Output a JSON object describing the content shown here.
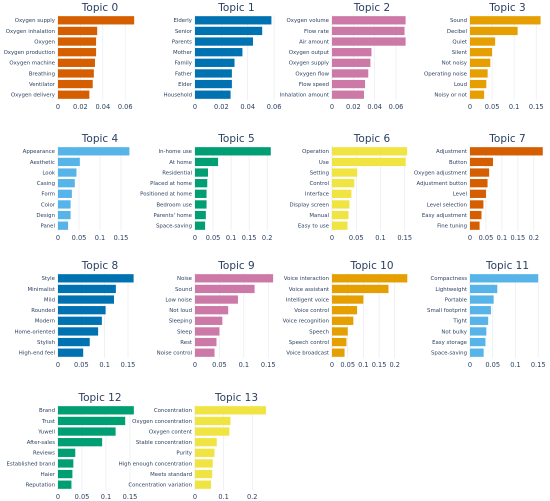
{
  "chart_data": [
    {
      "type": "bar",
      "orientation": "horizontal",
      "title": "Topic 0",
      "color": "#D55E00",
      "xlim": [
        0,
        0.075
      ],
      "xticks": [
        0,
        0.02,
        0.04,
        0.06
      ],
      "xtick_labels": [
        "0",
        "0.02",
        "0.04",
        "0.06"
      ],
      "categories": [
        "Oxygen supply",
        "Oxygen inhalation",
        "Oxygen",
        "Oxygen production",
        "Oxygen machine",
        "Breathing",
        "Ventilator",
        "Oxygen delivery"
      ],
      "values": [
        0.068,
        0.035,
        0.034,
        0.034,
        0.033,
        0.032,
        0.031,
        0.028
      ]
    },
    {
      "type": "bar",
      "orientation": "horizontal",
      "title": "Topic 1",
      "color": "#0072B2",
      "xlim": [
        0,
        0.063
      ],
      "xticks": [
        0,
        0.02,
        0.04,
        0.06
      ],
      "xtick_labels": [
        "0",
        "0.02",
        "0.04",
        "0.06"
      ],
      "categories": [
        "Elderly",
        "Senior",
        "Parents",
        "Mother",
        "Family",
        "Father",
        "Elder",
        "Household"
      ],
      "values": [
        0.058,
        0.051,
        0.044,
        0.036,
        0.03,
        0.028,
        0.028,
        0.027
      ]
    },
    {
      "type": "bar",
      "orientation": "horizontal",
      "title": "Topic 2",
      "color": "#CC79A7",
      "xlim": [
        0,
        0.075
      ],
      "xticks": [
        0,
        0.02,
        0.04,
        0.06
      ],
      "xtick_labels": [
        "0",
        "0.02",
        "0.04",
        "0.06"
      ],
      "categories": [
        "Oxygen volume",
        "Flow rate",
        "Air amount",
        "Oxygen output",
        "Oxygen supply",
        "Oxygen flow",
        "Flow speed",
        "Inhalation amount"
      ],
      "values": [
        0.069,
        0.068,
        0.069,
        0.037,
        0.036,
        0.034,
        0.031,
        0.03
      ]
    },
    {
      "type": "bar",
      "orientation": "horizontal",
      "title": "Topic 3",
      "color": "#E69F00",
      "xlim": [
        0,
        0.17
      ],
      "xticks": [
        0,
        0.05,
        0.1,
        0.15
      ],
      "xtick_labels": [
        "0",
        "0.05",
        "0.1",
        "0.15"
      ],
      "categories": [
        "Sound",
        "Decibel",
        "Quiet",
        "Silent",
        "Not noisy",
        "Operating noise",
        "Loud",
        "Noisy or not"
      ],
      "values": [
        0.16,
        0.108,
        0.057,
        0.05,
        0.046,
        0.04,
        0.037,
        0.032
      ]
    },
    {
      "type": "bar",
      "orientation": "horizontal",
      "title": "Topic 4",
      "color": "#56B4E9",
      "xlim": [
        0,
        0.2
      ],
      "xticks": [
        0,
        0.05,
        0.1,
        0.15
      ],
      "xtick_labels": [
        "0",
        "0.05",
        "0.1",
        "0.15"
      ],
      "categories": [
        "Appearance",
        "Aesthetic",
        "Look",
        "Casing",
        "Form",
        "Color",
        "Design",
        "Panel"
      ],
      "values": [
        0.17,
        0.052,
        0.044,
        0.04,
        0.033,
        0.03,
        0.03,
        0.024
      ]
    },
    {
      "type": "bar",
      "orientation": "horizontal",
      "title": "Topic 5",
      "color": "#009E73",
      "xlim": [
        0,
        0.23
      ],
      "xticks": [
        0,
        0.05,
        0.1,
        0.15,
        0.2
      ],
      "xtick_labels": [
        "0",
        "0.05",
        "0.1",
        "0.15",
        "0.2"
      ],
      "categories": [
        "In-home use",
        "At home",
        "Residential",
        "Placed at home",
        "Positioned at home",
        "Bedroom use",
        "Parents' home",
        "Space-saving"
      ],
      "values": [
        0.21,
        0.064,
        0.036,
        0.034,
        0.032,
        0.032,
        0.03,
        0.028
      ]
    },
    {
      "type": "bar",
      "orientation": "horizontal",
      "title": "Topic 6",
      "color": "#F0E442",
      "xlim": [
        0,
        0.165
      ],
      "xticks": [
        0,
        0.05,
        0.1,
        0.15
      ],
      "xtick_labels": [
        "0",
        "0.05",
        "0.1",
        "0.15"
      ],
      "categories": [
        "Operation",
        "Use",
        "Setting",
        "Control",
        "Interface",
        "Display screen",
        "Manual",
        "Easy to use"
      ],
      "values": [
        0.155,
        0.152,
        0.052,
        0.046,
        0.04,
        0.036,
        0.034,
        0.032
      ]
    },
    {
      "type": "bar",
      "orientation": "horizontal",
      "title": "Topic 7",
      "color": "#D55E00",
      "xlim": [
        0,
        0.235
      ],
      "xticks": [
        0,
        0.05,
        0.1,
        0.15,
        0.2
      ],
      "xtick_labels": [
        "0",
        "0.05",
        "0.1",
        "0.15",
        "0.2"
      ],
      "categories": [
        "Adjustment",
        "Button",
        "Oxygen adjustment",
        "Adjustment button",
        "Level",
        "Level selection",
        "Easy adjustment",
        "Fine tuning"
      ],
      "values": [
        0.228,
        0.072,
        0.06,
        0.055,
        0.05,
        0.042,
        0.036,
        0.03
      ]
    },
    {
      "type": "bar",
      "orientation": "horizontal",
      "title": "Topic 8",
      "color": "#0072B2",
      "xlim": [
        0,
        0.18
      ],
      "xticks": [
        0,
        0.05,
        0.1,
        0.15
      ],
      "xtick_labels": [
        "0",
        "0.05",
        "0.1",
        "0.15"
      ],
      "categories": [
        "Style",
        "Minimalist",
        "Mild",
        "Rounded",
        "Modern",
        "Home-oriented",
        "Stylish",
        "High-end feel"
      ],
      "values": [
        0.162,
        0.124,
        0.12,
        0.102,
        0.094,
        0.086,
        0.068,
        0.054
      ]
    },
    {
      "type": "bar",
      "orientation": "horizontal",
      "title": "Topic 9",
      "color": "#CC79A7",
      "xlim": [
        0,
        0.17
      ],
      "xticks": [
        0,
        0.05,
        0.1,
        0.15
      ],
      "xtick_labels": [
        "0",
        "0.05",
        "0.1",
        "0.15"
      ],
      "categories": [
        "Noise",
        "Sound",
        "Low noise",
        "Not loud",
        "Sleeping",
        "Sleep",
        "Rest",
        "Noise control"
      ],
      "values": [
        0.16,
        0.122,
        0.088,
        0.068,
        0.056,
        0.05,
        0.044,
        0.04
      ]
    },
    {
      "type": "bar",
      "orientation": "horizontal",
      "title": "Topic 10",
      "color": "#E69F00",
      "xlim": [
        0,
        0.255
      ],
      "xticks": [
        0,
        0.05,
        0.1,
        0.15,
        0.2
      ],
      "xtick_labels": [
        "0",
        "0.05",
        "0.1",
        "0.15",
        "0.2"
      ],
      "categories": [
        "Voice interaction",
        "Voice assistant",
        "Intelligent voice",
        "Voice control",
        "Voice recognition",
        "Speech",
        "Speech control",
        "Voice broadcast"
      ],
      "values": [
        0.24,
        0.18,
        0.1,
        0.08,
        0.068,
        0.05,
        0.046,
        0.04
      ]
    },
    {
      "type": "bar",
      "orientation": "horizontal",
      "title": "Topic 11",
      "color": "#56B4E9",
      "xlim": [
        0,
        0.165
      ],
      "xticks": [
        0,
        0.05,
        0.1,
        0.15
      ],
      "xtick_labels": [
        "0",
        "0.05",
        "0.1",
        "0.15"
      ],
      "categories": [
        "Compactness",
        "Lightweight",
        "Portable",
        "Small footprint",
        "Tight",
        "Not bulky",
        "Easy storage",
        "Space-saving"
      ],
      "values": [
        0.15,
        0.06,
        0.052,
        0.046,
        0.04,
        0.036,
        0.034,
        0.03
      ]
    },
    {
      "type": "bar",
      "orientation": "horizontal",
      "title": "Topic 12",
      "color": "#009E73",
      "xlim": [
        0,
        0.175
      ],
      "xticks": [
        0,
        0.05,
        0.1,
        0.15
      ],
      "xtick_labels": [
        "0",
        "0.05",
        "0.1",
        "0.15"
      ],
      "categories": [
        "Brand",
        "Trust",
        "Yuwell",
        "After-sales",
        "Reviews",
        "Established brand",
        "Haier",
        "Reputation"
      ],
      "values": [
        0.158,
        0.14,
        0.12,
        0.092,
        0.036,
        0.032,
        0.03,
        0.028
      ]
    },
    {
      "type": "bar",
      "orientation": "horizontal",
      "title": "Topic 13",
      "color": "#F0E442",
      "xlim": [
        0,
        0.29
      ],
      "xticks": [
        0,
        0.1,
        0.2
      ],
      "xtick_labels": [
        "0",
        "0.1",
        "0.2"
      ],
      "categories": [
        "Concentration",
        "Oxygen concentration",
        "Oxygen content",
        "Stable concentration",
        "Purity",
        "High enough concentration",
        "Meets standard",
        "Concentration variation"
      ],
      "values": [
        0.248,
        0.124,
        0.12,
        0.076,
        0.068,
        0.062,
        0.06,
        0.056
      ]
    }
  ]
}
